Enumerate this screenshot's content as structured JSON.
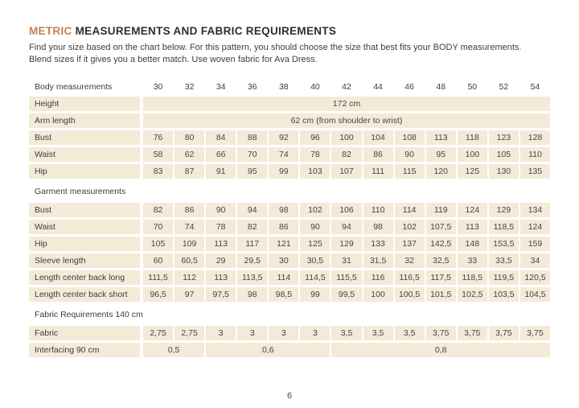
{
  "title": {
    "highlight": "METRIC",
    "rest": " MEASUREMENTS AND FABRIC REQUIREMENTS"
  },
  "intro": {
    "line1": "Find your size based on the chart below. For this pattern, you should choose the size that best fits your BODY measurements.",
    "line2": "Blend sizes if it gives you a better match. Use woven fabric for Ava Dress."
  },
  "colors": {
    "accent": "#c67f55",
    "cell_background": "#f3ebd8",
    "text": "#3d3d3d"
  },
  "table": {
    "header_label": "Body measurements",
    "sizes": [
      "30",
      "32",
      "34",
      "36",
      "38",
      "40",
      "42",
      "44",
      "46",
      "48",
      "50",
      "52",
      "54"
    ],
    "rows": [
      {
        "type": "merged",
        "label": "Height",
        "value": "172 cm"
      },
      {
        "type": "merged",
        "label": "Arm length",
        "value": "62 cm (from shoulder to wrist)"
      },
      {
        "type": "cells",
        "label": "Bust",
        "values": [
          "76",
          "80",
          "84",
          "88",
          "92",
          "96",
          "100",
          "104",
          "108",
          "113",
          "118",
          "123",
          "128"
        ]
      },
      {
        "type": "cells",
        "label": "Waist",
        "values": [
          "58",
          "62",
          "66",
          "70",
          "74",
          "78",
          "82",
          "86",
          "90",
          "95",
          "100",
          "105",
          "110"
        ]
      },
      {
        "type": "cells",
        "label": "Hip",
        "values": [
          "83",
          "87",
          "91",
          "95",
          "99",
          "103",
          "107",
          "111",
          "115",
          "120",
          "125",
          "130",
          "135"
        ]
      },
      {
        "type": "section",
        "label": "Garment measurements"
      },
      {
        "type": "cells",
        "label": "Bust",
        "values": [
          "82",
          "86",
          "90",
          "94",
          "98",
          "102",
          "106",
          "110",
          "114",
          "119",
          "124",
          "129",
          "134"
        ]
      },
      {
        "type": "cells",
        "label": "Waist",
        "values": [
          "70",
          "74",
          "78",
          "82",
          "86",
          "90",
          "94",
          "98",
          "102",
          "107,5",
          "113",
          "118,5",
          "124"
        ]
      },
      {
        "type": "cells",
        "label": "Hip",
        "values": [
          "105",
          "109",
          "113",
          "117",
          "121",
          "125",
          "129",
          "133",
          "137",
          "142,5",
          "148",
          "153,5",
          "159"
        ]
      },
      {
        "type": "cells",
        "label": "Sleeve length",
        "values": [
          "60",
          "60,5",
          "29",
          "29,5",
          "30",
          "30,5",
          "31",
          "31,5",
          "32",
          "32,5",
          "33",
          "33,5",
          "34"
        ]
      },
      {
        "type": "cells",
        "label": "Length center back long",
        "values": [
          "111,5",
          "112",
          "113",
          "113,5",
          "114",
          "114,5",
          "115,5",
          "116",
          "116,5",
          "117,5",
          "118,5",
          "119,5",
          "120,5"
        ]
      },
      {
        "type": "cells",
        "label": "Length center back short",
        "values": [
          "96,5",
          "97",
          "97,5",
          "98",
          "98,5",
          "99",
          "99,5",
          "100",
          "100,5",
          "101,5",
          "102,5",
          "103,5",
          "104,5"
        ]
      },
      {
        "type": "section",
        "label": "Fabric Requirements 140 cm"
      },
      {
        "type": "cells",
        "label": "Fabric",
        "values": [
          "2,75",
          "2,75",
          "3",
          "3",
          "3",
          "3",
          "3,5",
          "3,5",
          "3,5",
          "3,75",
          "3,75",
          "3,75",
          "3,75"
        ]
      },
      {
        "type": "groups",
        "label": "Interfacing 90 cm",
        "groups": [
          {
            "value": "0,5",
            "span": 2
          },
          {
            "value": "0,6",
            "span": 4
          },
          {
            "value": "0,8",
            "span": 7
          }
        ]
      }
    ]
  },
  "footer": {
    "page_number": "6"
  }
}
